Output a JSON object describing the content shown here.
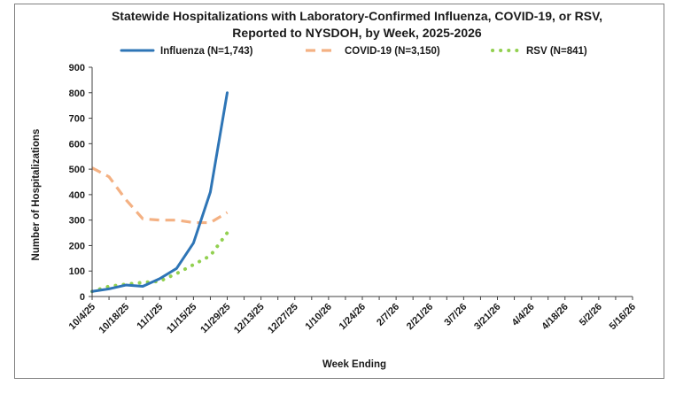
{
  "chart_data": {
    "type": "line",
    "title_line1": "Statewide Hospitalizations with Laboratory-Confirmed  Influenza,  COVID-19, or RSV,",
    "title_line2": "Reported to NYSDOH, by Week, 2025-2026",
    "xlabel": "Week Ending",
    "ylabel": "Number of Hospitalizations",
    "ylim": [
      0,
      900
    ],
    "yticks": [
      0,
      100,
      200,
      300,
      400,
      500,
      600,
      700,
      800,
      900
    ],
    "x_labels": [
      "10/4/25",
      "10/18/25",
      "11/1/25",
      "11/15/25",
      "11/29/25",
      "12/13/25",
      "12/27/25",
      "1/10/26",
      "1/24/26",
      "2/7/26",
      "2/21/26",
      "3/7/26",
      "3/21/26",
      "4/4/26",
      "4/18/26",
      "5/2/26",
      "5/16/26"
    ],
    "weeks_total": 33,
    "grid": false,
    "legend_position": "top",
    "series": [
      {
        "name": "Influenza (N=1,743)",
        "style": "solid",
        "color": "#2e75b6",
        "values": [
          20,
          30,
          45,
          40,
          70,
          110,
          210,
          410,
          800
        ]
      },
      {
        "name": "COVID-19 (N=3,150)",
        "style": "dashed",
        "color": "#f4b183",
        "values": [
          505,
          470,
          380,
          305,
          300,
          300,
          290,
          290,
          330
        ]
      },
      {
        "name": "RSV (N=841)",
        "style": "dotted",
        "color": "#92d050",
        "values": [
          20,
          40,
          48,
          55,
          60,
          90,
          125,
          160,
          250
        ]
      }
    ]
  }
}
